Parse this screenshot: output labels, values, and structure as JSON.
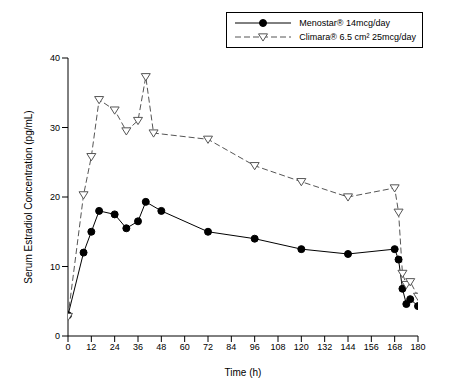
{
  "chart_data": {
    "type": "line",
    "x_label": "Time (h)",
    "y_label": "Serum Estradiol Concentration (pg/mL)",
    "xlim": [
      0,
      180
    ],
    "xticks": [
      0,
      12,
      24,
      36,
      48,
      60,
      72,
      84,
      96,
      108,
      120,
      132,
      144,
      156,
      168,
      180
    ],
    "ylim": [
      0,
      40
    ],
    "yticks": [
      0,
      10,
      20,
      30,
      40
    ],
    "legend": "upper right",
    "series": [
      {
        "name": "Menostar® 14mcg/day",
        "color": "#000000",
        "marker": "circle",
        "line_style": "solid",
        "x": [
          0,
          8,
          12,
          16,
          24,
          30,
          36,
          40,
          48,
          72,
          96,
          120,
          144,
          168,
          170,
          172,
          174,
          176,
          180
        ],
        "values": [
          3,
          12,
          15,
          18,
          17.5,
          15.5,
          16.5,
          19.3,
          18,
          15,
          14,
          12.5,
          11.8,
          12.5,
          11,
          6.8,
          4.6,
          5.3,
          4.3
        ]
      },
      {
        "name": "Climara® 6.5 cm² 25mcg/day",
        "color": "#555555",
        "marker": "triangle",
        "line_style": "dashed",
        "x": [
          0,
          8,
          12,
          16,
          24,
          30,
          36,
          40,
          44,
          72,
          96,
          120,
          144,
          168,
          170,
          172,
          174,
          176,
          180
        ],
        "values": [
          2.8,
          20.3,
          25.8,
          34,
          32.5,
          29.5,
          31,
          37.3,
          29.2,
          28.3,
          24.5,
          22.2,
          20,
          21.3,
          17.8,
          9,
          7.4,
          7.8,
          5.7
        ]
      }
    ]
  }
}
